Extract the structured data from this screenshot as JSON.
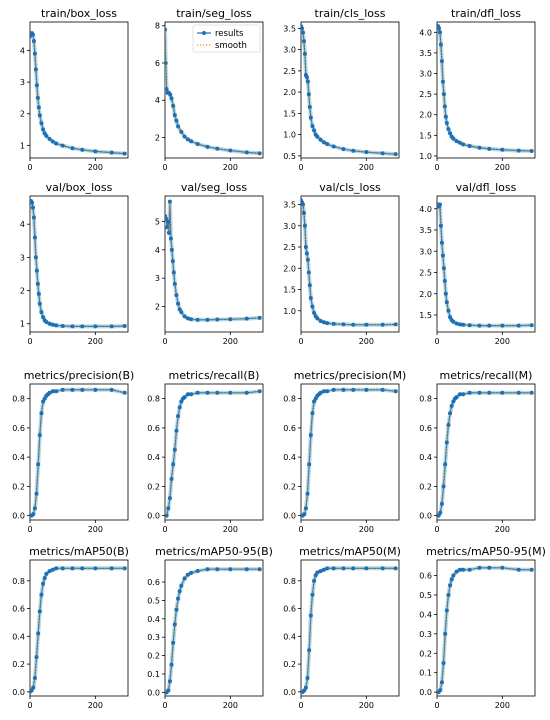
{
  "legend": {
    "results": "results",
    "smooth": "smooth"
  },
  "colors": {
    "results": "#1f6fb5",
    "smooth": "#ff8c00",
    "ghost": "#9fd3ea"
  },
  "chart_data": [
    {
      "type": "line",
      "title": "train/box_loss",
      "xlim": [
        0,
        300
      ],
      "ylim": [
        0.6,
        4.9
      ],
      "xticks": [
        0,
        200
      ],
      "yticks": [
        1,
        2,
        3,
        4
      ],
      "legend": false,
      "series": [
        {
          "name": "results",
          "x": [
            0,
            3,
            6,
            9,
            12,
            15,
            18,
            21,
            24,
            27,
            30,
            35,
            40,
            45,
            50,
            60,
            70,
            80,
            100,
            130,
            160,
            200,
            250,
            290
          ],
          "y": [
            4.45,
            4.52,
            4.55,
            4.5,
            4.3,
            3.9,
            3.4,
            2.9,
            2.5,
            2.2,
            1.95,
            1.7,
            1.5,
            1.38,
            1.3,
            1.2,
            1.12,
            1.06,
            0.99,
            0.91,
            0.86,
            0.81,
            0.77,
            0.74
          ]
        }
      ]
    },
    {
      "type": "line",
      "title": "train/seg_loss",
      "xlim": [
        0,
        300
      ],
      "ylim": [
        0.9,
        8.2
      ],
      "xticks": [
        0,
        200
      ],
      "yticks": [
        2,
        4,
        6,
        8
      ],
      "legend": true,
      "series": [
        {
          "name": "results",
          "x": [
            0,
            2,
            5,
            8,
            12,
            16,
            20,
            25,
            30,
            35,
            40,
            50,
            60,
            70,
            80,
            100,
            130,
            160,
            200,
            250,
            290
          ],
          "y": [
            7.8,
            6.0,
            4.6,
            4.4,
            4.4,
            4.3,
            4.1,
            3.7,
            3.2,
            2.9,
            2.6,
            2.3,
            2.05,
            1.9,
            1.8,
            1.65,
            1.5,
            1.4,
            1.3,
            1.2,
            1.15
          ]
        }
      ]
    },
    {
      "type": "line",
      "title": "train/cls_loss",
      "xlim": [
        0,
        300
      ],
      "ylim": [
        0.45,
        3.65
      ],
      "xticks": [
        0,
        200
      ],
      "yticks": [
        0.5,
        1.0,
        1.5,
        2.0,
        2.5,
        3.0,
        3.5
      ],
      "legend": false,
      "series": [
        {
          "name": "results",
          "x": [
            0,
            3,
            6,
            9,
            12,
            15,
            18,
            21,
            24,
            27,
            30,
            35,
            40,
            45,
            50,
            60,
            70,
            80,
            100,
            130,
            160,
            200,
            250,
            290
          ],
          "y": [
            3.55,
            3.5,
            3.4,
            3.2,
            2.9,
            2.4,
            2.35,
            2.25,
            1.95,
            1.65,
            1.4,
            1.2,
            1.1,
            1.0,
            0.95,
            0.88,
            0.82,
            0.78,
            0.72,
            0.66,
            0.62,
            0.59,
            0.56,
            0.54
          ]
        }
      ]
    },
    {
      "type": "line",
      "title": "train/dfl_loss",
      "xlim": [
        0,
        300
      ],
      "ylim": [
        0.95,
        4.25
      ],
      "xticks": [
        0,
        200
      ],
      "yticks": [
        1.0,
        1.5,
        2.0,
        2.5,
        3.0,
        3.5,
        4.0
      ],
      "legend": false,
      "series": [
        {
          "name": "results",
          "x": [
            0,
            3,
            6,
            9,
            12,
            15,
            18,
            21,
            24,
            27,
            30,
            35,
            40,
            45,
            50,
            60,
            70,
            80,
            100,
            130,
            160,
            200,
            250,
            290
          ],
          "y": [
            4.15,
            4.15,
            4.1,
            4.0,
            3.7,
            3.3,
            2.8,
            2.5,
            2.2,
            1.95,
            1.8,
            1.65,
            1.55,
            1.47,
            1.42,
            1.36,
            1.32,
            1.28,
            1.24,
            1.2,
            1.17,
            1.15,
            1.13,
            1.12
          ]
        }
      ]
    },
    {
      "type": "line",
      "title": "val/box_loss",
      "xlim": [
        0,
        300
      ],
      "ylim": [
        0.75,
        4.85
      ],
      "xticks": [
        0,
        200
      ],
      "yticks": [
        1,
        2,
        3,
        4
      ],
      "legend": false,
      "series": [
        {
          "name": "results",
          "x": [
            0,
            3,
            6,
            9,
            12,
            15,
            18,
            21,
            24,
            27,
            30,
            35,
            40,
            45,
            50,
            60,
            70,
            80,
            100,
            130,
            160,
            200,
            250,
            290
          ],
          "y": [
            4.7,
            4.7,
            4.65,
            4.5,
            4.2,
            3.6,
            3.0,
            2.6,
            2.2,
            1.9,
            1.6,
            1.35,
            1.2,
            1.1,
            1.05,
            1.0,
            0.97,
            0.95,
            0.93,
            0.92,
            0.92,
            0.92,
            0.92,
            0.93
          ]
        }
      ]
    },
    {
      "type": "line",
      "title": "val/seg_loss",
      "xlim": [
        0,
        300
      ],
      "ylim": [
        1.1,
        5.9
      ],
      "xticks": [
        0,
        200
      ],
      "yticks": [
        2,
        3,
        4,
        5
      ],
      "legend": false,
      "series": [
        {
          "name": "results",
          "x": [
            0,
            3,
            6,
            9,
            12,
            15,
            18,
            21,
            24,
            27,
            30,
            35,
            40,
            45,
            50,
            60,
            70,
            80,
            100,
            130,
            160,
            200,
            250,
            290
          ],
          "y": [
            5.2,
            5.1,
            4.8,
            5.0,
            4.6,
            5.7,
            4.4,
            4.0,
            3.6,
            3.2,
            2.8,
            2.4,
            2.1,
            1.9,
            1.8,
            1.65,
            1.58,
            1.55,
            1.53,
            1.53,
            1.54,
            1.55,
            1.57,
            1.6
          ]
        }
      ]
    },
    {
      "type": "line",
      "title": "val/cls_loss",
      "xlim": [
        0,
        300
      ],
      "ylim": [
        0.5,
        3.7
      ],
      "xticks": [
        0,
        200
      ],
      "yticks": [
        1.0,
        1.5,
        2.0,
        2.5,
        3.0,
        3.5
      ],
      "legend": false,
      "series": [
        {
          "name": "results",
          "x": [
            0,
            3,
            6,
            9,
            12,
            15,
            18,
            21,
            24,
            27,
            30,
            35,
            40,
            45,
            50,
            60,
            70,
            80,
            100,
            130,
            160,
            200,
            250,
            290
          ],
          "y": [
            3.6,
            3.55,
            3.5,
            3.3,
            3.0,
            2.5,
            2.35,
            2.2,
            1.9,
            1.6,
            1.3,
            1.1,
            0.95,
            0.87,
            0.82,
            0.76,
            0.73,
            0.71,
            0.69,
            0.68,
            0.67,
            0.67,
            0.67,
            0.68
          ]
        }
      ]
    },
    {
      "type": "line",
      "title": "val/dfl_loss",
      "xlim": [
        0,
        300
      ],
      "ylim": [
        1.1,
        4.3
      ],
      "xticks": [
        0,
        200
      ],
      "yticks": [
        1.5,
        2.0,
        2.5,
        3.0,
        3.5,
        4.0
      ],
      "legend": false,
      "series": [
        {
          "name": "results",
          "x": [
            0,
            3,
            6,
            9,
            12,
            15,
            18,
            21,
            24,
            27,
            30,
            35,
            40,
            45,
            50,
            60,
            70,
            80,
            100,
            130,
            160,
            200,
            250,
            290
          ],
          "y": [
            4.1,
            4.1,
            4.05,
            4.1,
            3.6,
            3.2,
            2.9,
            2.6,
            2.3,
            2.0,
            1.8,
            1.6,
            1.45,
            1.38,
            1.34,
            1.3,
            1.28,
            1.27,
            1.26,
            1.25,
            1.25,
            1.25,
            1.25,
            1.26
          ]
        }
      ]
    },
    {
      "type": "line",
      "title": "metrics/precision(B)",
      "xlim": [
        0,
        300
      ],
      "ylim": [
        -0.03,
        0.9
      ],
      "xticks": [
        0,
        200
      ],
      "yticks": [
        0.0,
        0.2,
        0.4,
        0.6,
        0.8
      ],
      "legend": false,
      "series": [
        {
          "name": "results",
          "x": [
            0,
            5,
            10,
            15,
            20,
            25,
            30,
            35,
            40,
            45,
            50,
            55,
            60,
            70,
            80,
            100,
            130,
            160,
            200,
            250,
            290
          ],
          "y": [
            0.0,
            0.0,
            0.01,
            0.05,
            0.15,
            0.35,
            0.55,
            0.7,
            0.78,
            0.8,
            0.82,
            0.83,
            0.84,
            0.85,
            0.85,
            0.86,
            0.86,
            0.86,
            0.86,
            0.86,
            0.84
          ]
        }
      ]
    },
    {
      "type": "line",
      "title": "metrics/recall(B)",
      "xlim": [
        0,
        300
      ],
      "ylim": [
        -0.03,
        0.9
      ],
      "xticks": [
        0,
        200
      ],
      "yticks": [
        0.0,
        0.2,
        0.4,
        0.6,
        0.8
      ],
      "legend": false,
      "series": [
        {
          "name": "results",
          "x": [
            0,
            5,
            10,
            15,
            20,
            25,
            30,
            35,
            40,
            45,
            50,
            55,
            60,
            70,
            80,
            100,
            130,
            160,
            200,
            250,
            290
          ],
          "y": [
            0.0,
            0.0,
            0.05,
            0.12,
            0.25,
            0.35,
            0.45,
            0.58,
            0.68,
            0.74,
            0.78,
            0.8,
            0.81,
            0.83,
            0.83,
            0.84,
            0.84,
            0.84,
            0.84,
            0.84,
            0.85
          ]
        }
      ]
    },
    {
      "type": "line",
      "title": "metrics/precision(M)",
      "xlim": [
        0,
        300
      ],
      "ylim": [
        -0.03,
        0.9
      ],
      "xticks": [
        0,
        200
      ],
      "yticks": [
        0.0,
        0.2,
        0.4,
        0.6,
        0.8
      ],
      "legend": false,
      "series": [
        {
          "name": "results",
          "x": [
            0,
            5,
            10,
            15,
            20,
            25,
            30,
            35,
            40,
            45,
            50,
            55,
            60,
            70,
            80,
            100,
            130,
            160,
            200,
            250,
            290
          ],
          "y": [
            0.0,
            0.0,
            0.01,
            0.05,
            0.15,
            0.35,
            0.55,
            0.7,
            0.78,
            0.8,
            0.82,
            0.83,
            0.84,
            0.85,
            0.85,
            0.86,
            0.86,
            0.86,
            0.86,
            0.86,
            0.85
          ]
        }
      ]
    },
    {
      "type": "line",
      "title": "metrics/recall(M)",
      "xlim": [
        0,
        300
      ],
      "ylim": [
        -0.03,
        0.9
      ],
      "xticks": [
        0,
        200
      ],
      "yticks": [
        0.0,
        0.2,
        0.4,
        0.6,
        0.8
      ],
      "legend": false,
      "series": [
        {
          "name": "results",
          "x": [
            0,
            5,
            10,
            15,
            20,
            25,
            30,
            35,
            40,
            45,
            50,
            55,
            60,
            70,
            80,
            100,
            130,
            160,
            200,
            250,
            290
          ],
          "y": [
            0.0,
            0.0,
            0.02,
            0.08,
            0.2,
            0.35,
            0.5,
            0.62,
            0.7,
            0.75,
            0.78,
            0.8,
            0.81,
            0.83,
            0.83,
            0.84,
            0.84,
            0.84,
            0.84,
            0.84,
            0.84
          ]
        }
      ]
    },
    {
      "type": "line",
      "title": "metrics/mAP50(B)",
      "xlim": [
        0,
        300
      ],
      "ylim": [
        -0.03,
        0.95
      ],
      "xticks": [
        0,
        200
      ],
      "yticks": [
        0.0,
        0.2,
        0.4,
        0.6,
        0.8
      ],
      "legend": false,
      "series": [
        {
          "name": "results",
          "x": [
            0,
            5,
            10,
            15,
            20,
            25,
            30,
            35,
            40,
            45,
            50,
            60,
            70,
            80,
            100,
            130,
            160,
            200,
            250,
            290
          ],
          "y": [
            0.0,
            0.01,
            0.03,
            0.1,
            0.25,
            0.42,
            0.58,
            0.7,
            0.78,
            0.82,
            0.85,
            0.87,
            0.88,
            0.89,
            0.89,
            0.89,
            0.89,
            0.89,
            0.89,
            0.89
          ]
        }
      ]
    },
    {
      "type": "line",
      "title": "metrics/mAP50-95(B)",
      "xlim": [
        0,
        300
      ],
      "ylim": [
        -0.02,
        0.72
      ],
      "xticks": [
        0,
        200
      ],
      "yticks": [
        0.0,
        0.1,
        0.2,
        0.3,
        0.4,
        0.5,
        0.6
      ],
      "legend": false,
      "series": [
        {
          "name": "results",
          "x": [
            0,
            5,
            10,
            15,
            20,
            25,
            30,
            35,
            40,
            45,
            50,
            60,
            70,
            80,
            100,
            130,
            160,
            200,
            250,
            290
          ],
          "y": [
            0.0,
            0.0,
            0.01,
            0.06,
            0.15,
            0.27,
            0.37,
            0.45,
            0.51,
            0.55,
            0.58,
            0.62,
            0.64,
            0.65,
            0.66,
            0.67,
            0.67,
            0.67,
            0.67,
            0.67
          ]
        }
      ]
    },
    {
      "type": "line",
      "title": "metrics/mAP50(M)",
      "xlim": [
        0,
        300
      ],
      "ylim": [
        -0.03,
        0.95
      ],
      "xticks": [
        0,
        200
      ],
      "yticks": [
        0.0,
        0.2,
        0.4,
        0.6,
        0.8
      ],
      "legend": false,
      "series": [
        {
          "name": "results",
          "x": [
            0,
            5,
            10,
            15,
            20,
            25,
            30,
            35,
            40,
            45,
            50,
            60,
            70,
            80,
            100,
            130,
            160,
            200,
            250,
            290
          ],
          "y": [
            0.0,
            0.0,
            0.01,
            0.03,
            0.1,
            0.3,
            0.55,
            0.7,
            0.8,
            0.84,
            0.86,
            0.87,
            0.88,
            0.89,
            0.89,
            0.89,
            0.89,
            0.89,
            0.89,
            0.89
          ]
        }
      ]
    },
    {
      "type": "line",
      "title": "metrics/mAP50-95(M)",
      "xlim": [
        0,
        300
      ],
      "ylim": [
        -0.02,
        0.68
      ],
      "xticks": [
        0,
        200
      ],
      "yticks": [
        0.0,
        0.1,
        0.2,
        0.3,
        0.4,
        0.5,
        0.6
      ],
      "legend": false,
      "series": [
        {
          "name": "results",
          "x": [
            0,
            5,
            10,
            15,
            20,
            25,
            30,
            35,
            40,
            45,
            50,
            60,
            70,
            80,
            100,
            130,
            160,
            200,
            250,
            290
          ],
          "y": [
            0.0,
            0.0,
            0.01,
            0.05,
            0.15,
            0.3,
            0.42,
            0.5,
            0.55,
            0.58,
            0.6,
            0.62,
            0.63,
            0.63,
            0.63,
            0.64,
            0.64,
            0.64,
            0.63,
            0.63
          ]
        }
      ]
    }
  ]
}
